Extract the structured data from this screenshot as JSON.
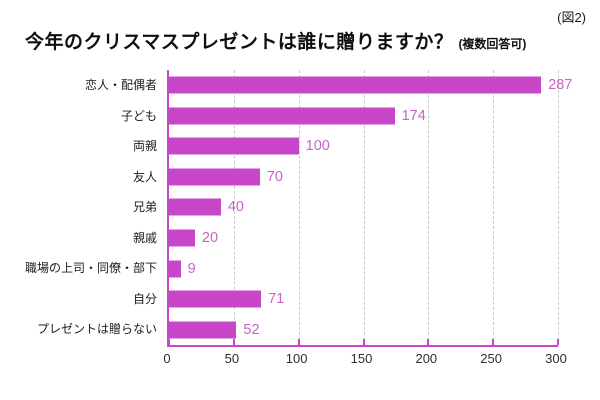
{
  "figure_label": "(図2)",
  "chart_data": {
    "type": "bar",
    "orientation": "horizontal",
    "title": "今年のクリスマスプレゼントは誰に贈りますか？",
    "subtitle": "(複数回答可)",
    "categories": [
      "恋人・配偶者",
      "子ども",
      "両親",
      "友人",
      "兄弟",
      "親戚",
      "職場の上司・同僚・部下",
      "自分",
      "プレゼントは贈らない"
    ],
    "values": [
      287,
      174,
      100,
      70,
      40,
      20,
      9,
      71,
      52
    ],
    "xlabel": "",
    "ylabel": "",
    "xlim": [
      0,
      300
    ],
    "xticks": [
      0,
      50,
      100,
      150,
      200,
      250,
      300
    ],
    "grid": "dashed-vertical",
    "legend": "none",
    "value_labels": "shown-right-of-bar",
    "colors": {
      "bar": "#c847c8",
      "value_label": "#c864c8",
      "axis": "#c847c8",
      "gridline": "#c9c9c9",
      "tick_label": "#2f2f2f",
      "title": "#0f0f0f"
    }
  }
}
